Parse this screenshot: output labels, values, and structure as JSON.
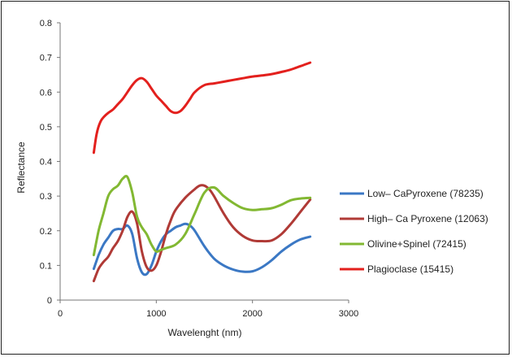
{
  "chart_data": {
    "type": "line",
    "title": "",
    "xlabel": "Wavelenght (nm)",
    "ylabel": "Reflectance",
    "xlim": [
      0,
      3000
    ],
    "ylim": [
      0,
      0.8
    ],
    "xticks": [
      "0",
      "1000",
      "2000",
      "3000"
    ],
    "yticks": [
      "0",
      "0.1",
      "0.2",
      "0.3",
      "0.4",
      "0.5",
      "0.6",
      "0.7",
      "0.8"
    ],
    "grid": false,
    "legend_position": "right",
    "series": [
      {
        "name": "Low– CaPyroxene (78235)",
        "color": "#3b78c4",
        "x": [
          350,
          400,
          450,
          500,
          550,
          600,
          650,
          700,
          750,
          800,
          850,
          900,
          950,
          1000,
          1050,
          1100,
          1150,
          1200,
          1250,
          1300,
          1350,
          1400,
          1500,
          1600,
          1700,
          1800,
          1900,
          2000,
          2100,
          2200,
          2300,
          2400,
          2500,
          2600
        ],
        "y": [
          0.09,
          0.13,
          0.16,
          0.18,
          0.2,
          0.205,
          0.205,
          0.215,
          0.19,
          0.12,
          0.08,
          0.075,
          0.1,
          0.14,
          0.17,
          0.19,
          0.2,
          0.21,
          0.215,
          0.22,
          0.215,
          0.2,
          0.155,
          0.12,
          0.1,
          0.088,
          0.082,
          0.083,
          0.095,
          0.115,
          0.14,
          0.16,
          0.175,
          0.183
        ]
      },
      {
        "name": "High– Ca Pyroxene (12063)",
        "color": "#b03a36",
        "x": [
          350,
          400,
          450,
          500,
          550,
          600,
          650,
          700,
          750,
          800,
          850,
          900,
          950,
          1000,
          1050,
          1100,
          1150,
          1200,
          1300,
          1400,
          1450,
          1500,
          1550,
          1600,
          1700,
          1800,
          1900,
          2000,
          2100,
          2200,
          2300,
          2400,
          2500,
          2600
        ],
        "y": [
          0.055,
          0.09,
          0.11,
          0.125,
          0.15,
          0.17,
          0.2,
          0.24,
          0.255,
          0.22,
          0.14,
          0.095,
          0.085,
          0.1,
          0.14,
          0.19,
          0.23,
          0.26,
          0.295,
          0.32,
          0.33,
          0.33,
          0.32,
          0.3,
          0.25,
          0.21,
          0.185,
          0.172,
          0.17,
          0.172,
          0.19,
          0.22,
          0.255,
          0.29
        ]
      },
      {
        "name": "Olivine+Spinel (72415)",
        "color": "#82b832",
        "x": [
          350,
          400,
          450,
          500,
          550,
          600,
          650,
          700,
          750,
          800,
          850,
          900,
          950,
          1000,
          1050,
          1100,
          1200,
          1300,
          1400,
          1500,
          1600,
          1700,
          1800,
          1900,
          2000,
          2100,
          2200,
          2300,
          2400,
          2500,
          2600
        ],
        "y": [
          0.13,
          0.2,
          0.25,
          0.3,
          0.32,
          0.33,
          0.35,
          0.355,
          0.31,
          0.24,
          0.21,
          0.19,
          0.16,
          0.14,
          0.145,
          0.15,
          0.16,
          0.19,
          0.25,
          0.31,
          0.325,
          0.3,
          0.28,
          0.265,
          0.26,
          0.262,
          0.265,
          0.275,
          0.288,
          0.293,
          0.295
        ]
      },
      {
        "name": "Plagioclase (15415)",
        "color": "#e3201d",
        "x": [
          350,
          380,
          420,
          460,
          500,
          550,
          600,
          650,
          700,
          750,
          800,
          850,
          900,
          950,
          1000,
          1050,
          1100,
          1150,
          1200,
          1250,
          1300,
          1350,
          1400,
          1500,
          1600,
          1700,
          1800,
          1900,
          2000,
          2100,
          2200,
          2300,
          2400,
          2500,
          2600
        ],
        "y": [
          0.425,
          0.48,
          0.515,
          0.53,
          0.54,
          0.55,
          0.565,
          0.58,
          0.6,
          0.62,
          0.635,
          0.64,
          0.63,
          0.61,
          0.59,
          0.575,
          0.56,
          0.545,
          0.54,
          0.545,
          0.56,
          0.58,
          0.6,
          0.62,
          0.625,
          0.63,
          0.635,
          0.64,
          0.645,
          0.648,
          0.652,
          0.658,
          0.665,
          0.675,
          0.685
        ]
      }
    ]
  }
}
